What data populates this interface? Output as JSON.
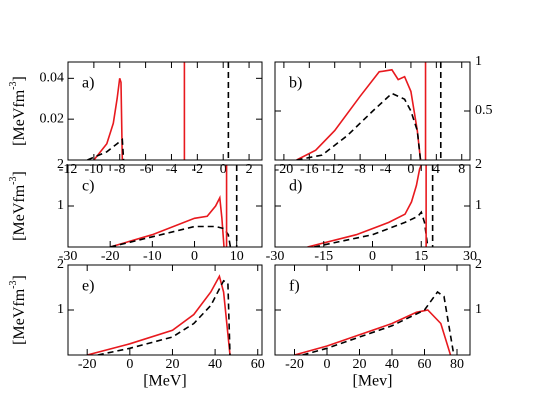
{
  "chart_data": [
    {
      "type": "line",
      "label": "a)",
      "xlim": [
        -12,
        3
      ],
      "xticks": [
        -12,
        -10,
        -8,
        -6,
        -4,
        -2,
        0,
        2
      ],
      "ylim": [
        0,
        0.048
      ],
      "yticks": [
        0.02,
        0.04
      ],
      "yaxis_side": "left",
      "ylabel": [
        "[MeVfm",
        "-3",
        "]"
      ],
      "series": [
        {
          "color": "#e8191e",
          "dash": false,
          "x": [
            -10,
            -9,
            -8.5,
            -8.2,
            -8,
            -7.9,
            -7.8
          ],
          "values": [
            0,
            0.008,
            0.018,
            0.03,
            0.04,
            0.038,
            0
          ]
        },
        {
          "color": "#000000",
          "dash": true,
          "x": [
            -10.5,
            -9,
            -8.2,
            -7.8,
            -7.7
          ],
          "values": [
            0,
            0.004,
            0.008,
            0.01,
            0
          ]
        }
      ],
      "vlines": [
        {
          "x": -3,
          "color": "#e8191e",
          "dash": false
        },
        {
          "x": 0.4,
          "color": "#000000",
          "dash": true
        }
      ]
    },
    {
      "type": "line",
      "label": "b)",
      "xlim": [
        -21.4,
        9.3
      ],
      "xticks": [
        -20,
        -16,
        -12,
        -8,
        -4,
        0,
        4,
        8
      ],
      "ylim": [
        0,
        1
      ],
      "yticks": [
        0.5,
        1
      ],
      "yaxis_side": "right",
      "series": [
        {
          "color": "#e8191e",
          "dash": false,
          "x": [
            -18,
            -15,
            -12,
            -8,
            -5,
            -3,
            -2,
            -1,
            0,
            1,
            1.5
          ],
          "values": [
            0,
            0.1,
            0.3,
            0.65,
            0.9,
            0.92,
            0.82,
            0.85,
            0.7,
            0.3,
            0
          ]
        },
        {
          "color": "#000000",
          "dash": true,
          "x": [
            -18,
            -14,
            -10,
            -6,
            -3,
            -1,
            0,
            1,
            1.5
          ],
          "values": [
            0,
            0.05,
            0.25,
            0.5,
            0.68,
            0.62,
            0.5,
            0.3,
            0
          ]
        }
      ],
      "vlines": [
        {
          "x": 2.3,
          "color": "#e8191e",
          "dash": false
        },
        {
          "x": 4.7,
          "color": "#000000",
          "dash": true
        }
      ]
    },
    {
      "type": "line",
      "label": "c)",
      "xlim": [
        -30,
        16
      ],
      "xticks": [
        -30,
        -20,
        -10,
        0,
        10
      ],
      "ylim": [
        0,
        2
      ],
      "yticks": [
        1,
        2
      ],
      "yaxis_side": "left",
      "ylabel": [
        "[MeVfm",
        "-3",
        "]"
      ],
      "series": [
        {
          "color": "#e8191e",
          "dash": false,
          "x": [
            -20,
            -10,
            0,
            3,
            5,
            6,
            6.5,
            7
          ],
          "values": [
            0,
            0.3,
            0.7,
            0.75,
            1.0,
            1.2,
            0.7,
            0
          ]
        },
        {
          "color": "#000000",
          "dash": true,
          "x": [
            -20,
            -10,
            0,
            5,
            7,
            8,
            8.5
          ],
          "values": [
            0,
            0.25,
            0.5,
            0.5,
            0.45,
            0.3,
            0
          ]
        }
      ],
      "vlines": [
        {
          "x": 7.6,
          "color": "#e8191e",
          "dash": false
        },
        {
          "x": 10,
          "color": "#000000",
          "dash": true
        }
      ]
    },
    {
      "type": "line",
      "label": "d)",
      "xlim": [
        -30,
        30
      ],
      "xticks": [
        -30,
        -15,
        0,
        15,
        30
      ],
      "ylim": [
        0,
        2
      ],
      "yticks": [
        1,
        2
      ],
      "yaxis_side": "right",
      "series": [
        {
          "color": "#e8191e",
          "dash": false,
          "x": [
            -20,
            -5,
            5,
            10,
            12,
            13.5,
            14.5,
            15
          ],
          "values": [
            0,
            0.3,
            0.6,
            0.8,
            1.1,
            1.5,
            1.9,
            2.0
          ]
        },
        {
          "color": "#000000",
          "dash": true,
          "x": [
            -18,
            0,
            10,
            14,
            15,
            16,
            17
          ],
          "values": [
            0,
            0.3,
            0.6,
            0.75,
            0.85,
            0.6,
            0
          ]
        }
      ],
      "vlines": [
        {
          "x": 16.5,
          "color": "#e8191e",
          "dash": false
        },
        {
          "x": 18.5,
          "color": "#000000",
          "dash": true
        }
      ]
    },
    {
      "type": "line",
      "label": "e)",
      "xlim": [
        -29,
        62
      ],
      "xticks": [
        -20,
        0,
        20,
        40,
        60
      ],
      "ylim": [
        0,
        2
      ],
      "yticks": [
        1,
        2
      ],
      "yaxis_side": "left",
      "ylabel": [
        "[MeVfm",
        "-3",
        "]"
      ],
      "xlabel": "[MeV]",
      "series": [
        {
          "color": "#e8191e",
          "dash": false,
          "x": [
            -20,
            0,
            20,
            30,
            38,
            42,
            44,
            47
          ],
          "values": [
            0,
            0.25,
            0.55,
            0.9,
            1.4,
            1.75,
            1.4,
            0
          ]
        },
        {
          "color": "#000000",
          "dash": true,
          "x": [
            -15,
            0,
            20,
            30,
            38,
            44,
            46,
            47
          ],
          "values": [
            0,
            0.15,
            0.4,
            0.7,
            1.1,
            1.65,
            1.6,
            0
          ]
        }
      ],
      "vlines": []
    },
    {
      "type": "line",
      "label": "f)",
      "xlim": [
        -32,
        88
      ],
      "xticks": [
        -20,
        0,
        20,
        40,
        60,
        80
      ],
      "ylim": [
        0,
        2
      ],
      "yticks": [
        1,
        2
      ],
      "yaxis_side": "right",
      "xlabel": "[Mev]",
      "series": [
        {
          "color": "#e8191e",
          "dash": false,
          "x": [
            -20,
            0,
            20,
            40,
            55,
            62,
            70,
            76
          ],
          "values": [
            0,
            0.2,
            0.45,
            0.7,
            0.95,
            1.0,
            0.7,
            0
          ]
        },
        {
          "color": "#000000",
          "dash": true,
          "x": [
            -15,
            0,
            20,
            40,
            60,
            68,
            72,
            78
          ],
          "values": [
            0,
            0.15,
            0.4,
            0.65,
            1.0,
            1.4,
            1.3,
            0
          ]
        }
      ],
      "vlines": []
    }
  ]
}
